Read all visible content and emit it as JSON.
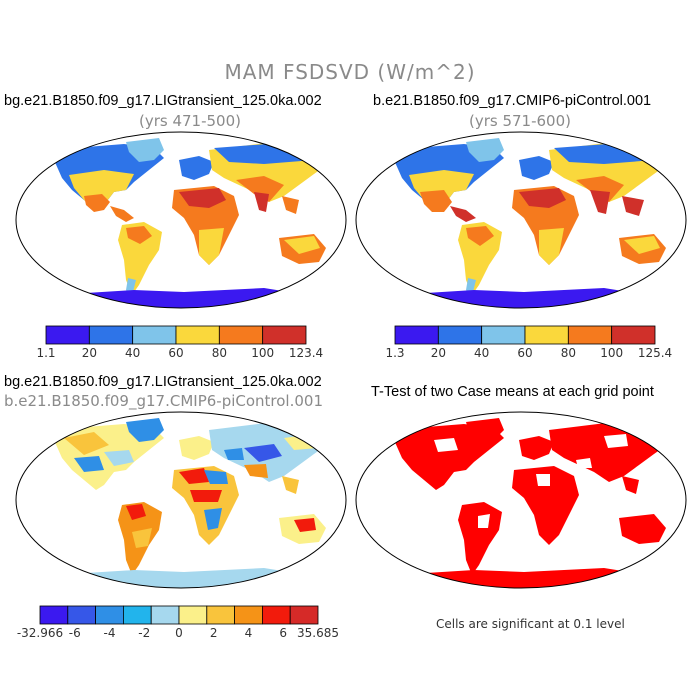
{
  "figure": {
    "title": "MAM FSDSVD (W/m^2)"
  },
  "panels": {
    "top_left": {
      "title": "bg.e21.B1850.f09_g17.LIGtransient_125.0ka.002",
      "subtitle": "(yrs 471-500)"
    },
    "top_right": {
      "title": "b.e21.B1850.f09_g17.CMIP6-piControl.001",
      "subtitle": "(yrs 571-600)"
    },
    "bottom_left": {
      "title": "bg.e21.B1850.f09_g17.LIGtransient_125.0ka.002",
      "subtitle": "b.e21.B1850.f09_g17.CMIP6-piControl.001"
    },
    "bottom_right": {
      "title": "T-Test of two Case means at each grid point",
      "note": "Cells are significant at 0.1 level"
    }
  },
  "colorbars": {
    "top_left": {
      "colors": [
        "#3b19f0",
        "#2e74e8",
        "#7fc4ea",
        "#fad83c",
        "#f57a1e",
        "#d0302a"
      ],
      "labels": [
        "1.1",
        "20",
        "40",
        "60",
        "80",
        "100",
        "123.4"
      ]
    },
    "top_right": {
      "colors": [
        "#3b19f0",
        "#2e74e8",
        "#7fc4ea",
        "#fad83c",
        "#f57a1e",
        "#d0302a"
      ],
      "labels": [
        "1.3",
        "20",
        "40",
        "60",
        "80",
        "100",
        "125.4"
      ]
    },
    "diff": {
      "colors": [
        "#3b19f0",
        "#3657e8",
        "#2f8fe6",
        "#22b4ec",
        "#a6d8ee",
        "#fbf08a",
        "#f9c43c",
        "#f59317",
        "#f21b0c",
        "#d62a28"
      ],
      "labels": [
        "-32.966",
        "-6",
        "-4",
        "-2",
        "0",
        "2",
        "4",
        "6",
        "35.685"
      ]
    }
  },
  "colors": {
    "ocean": "#ffffff",
    "antarctica_abs": "#3b19f0",
    "antarctica_diff": "#a6d8ee",
    "significant": "#ff0000",
    "title_gray": "#8a8a8a"
  }
}
